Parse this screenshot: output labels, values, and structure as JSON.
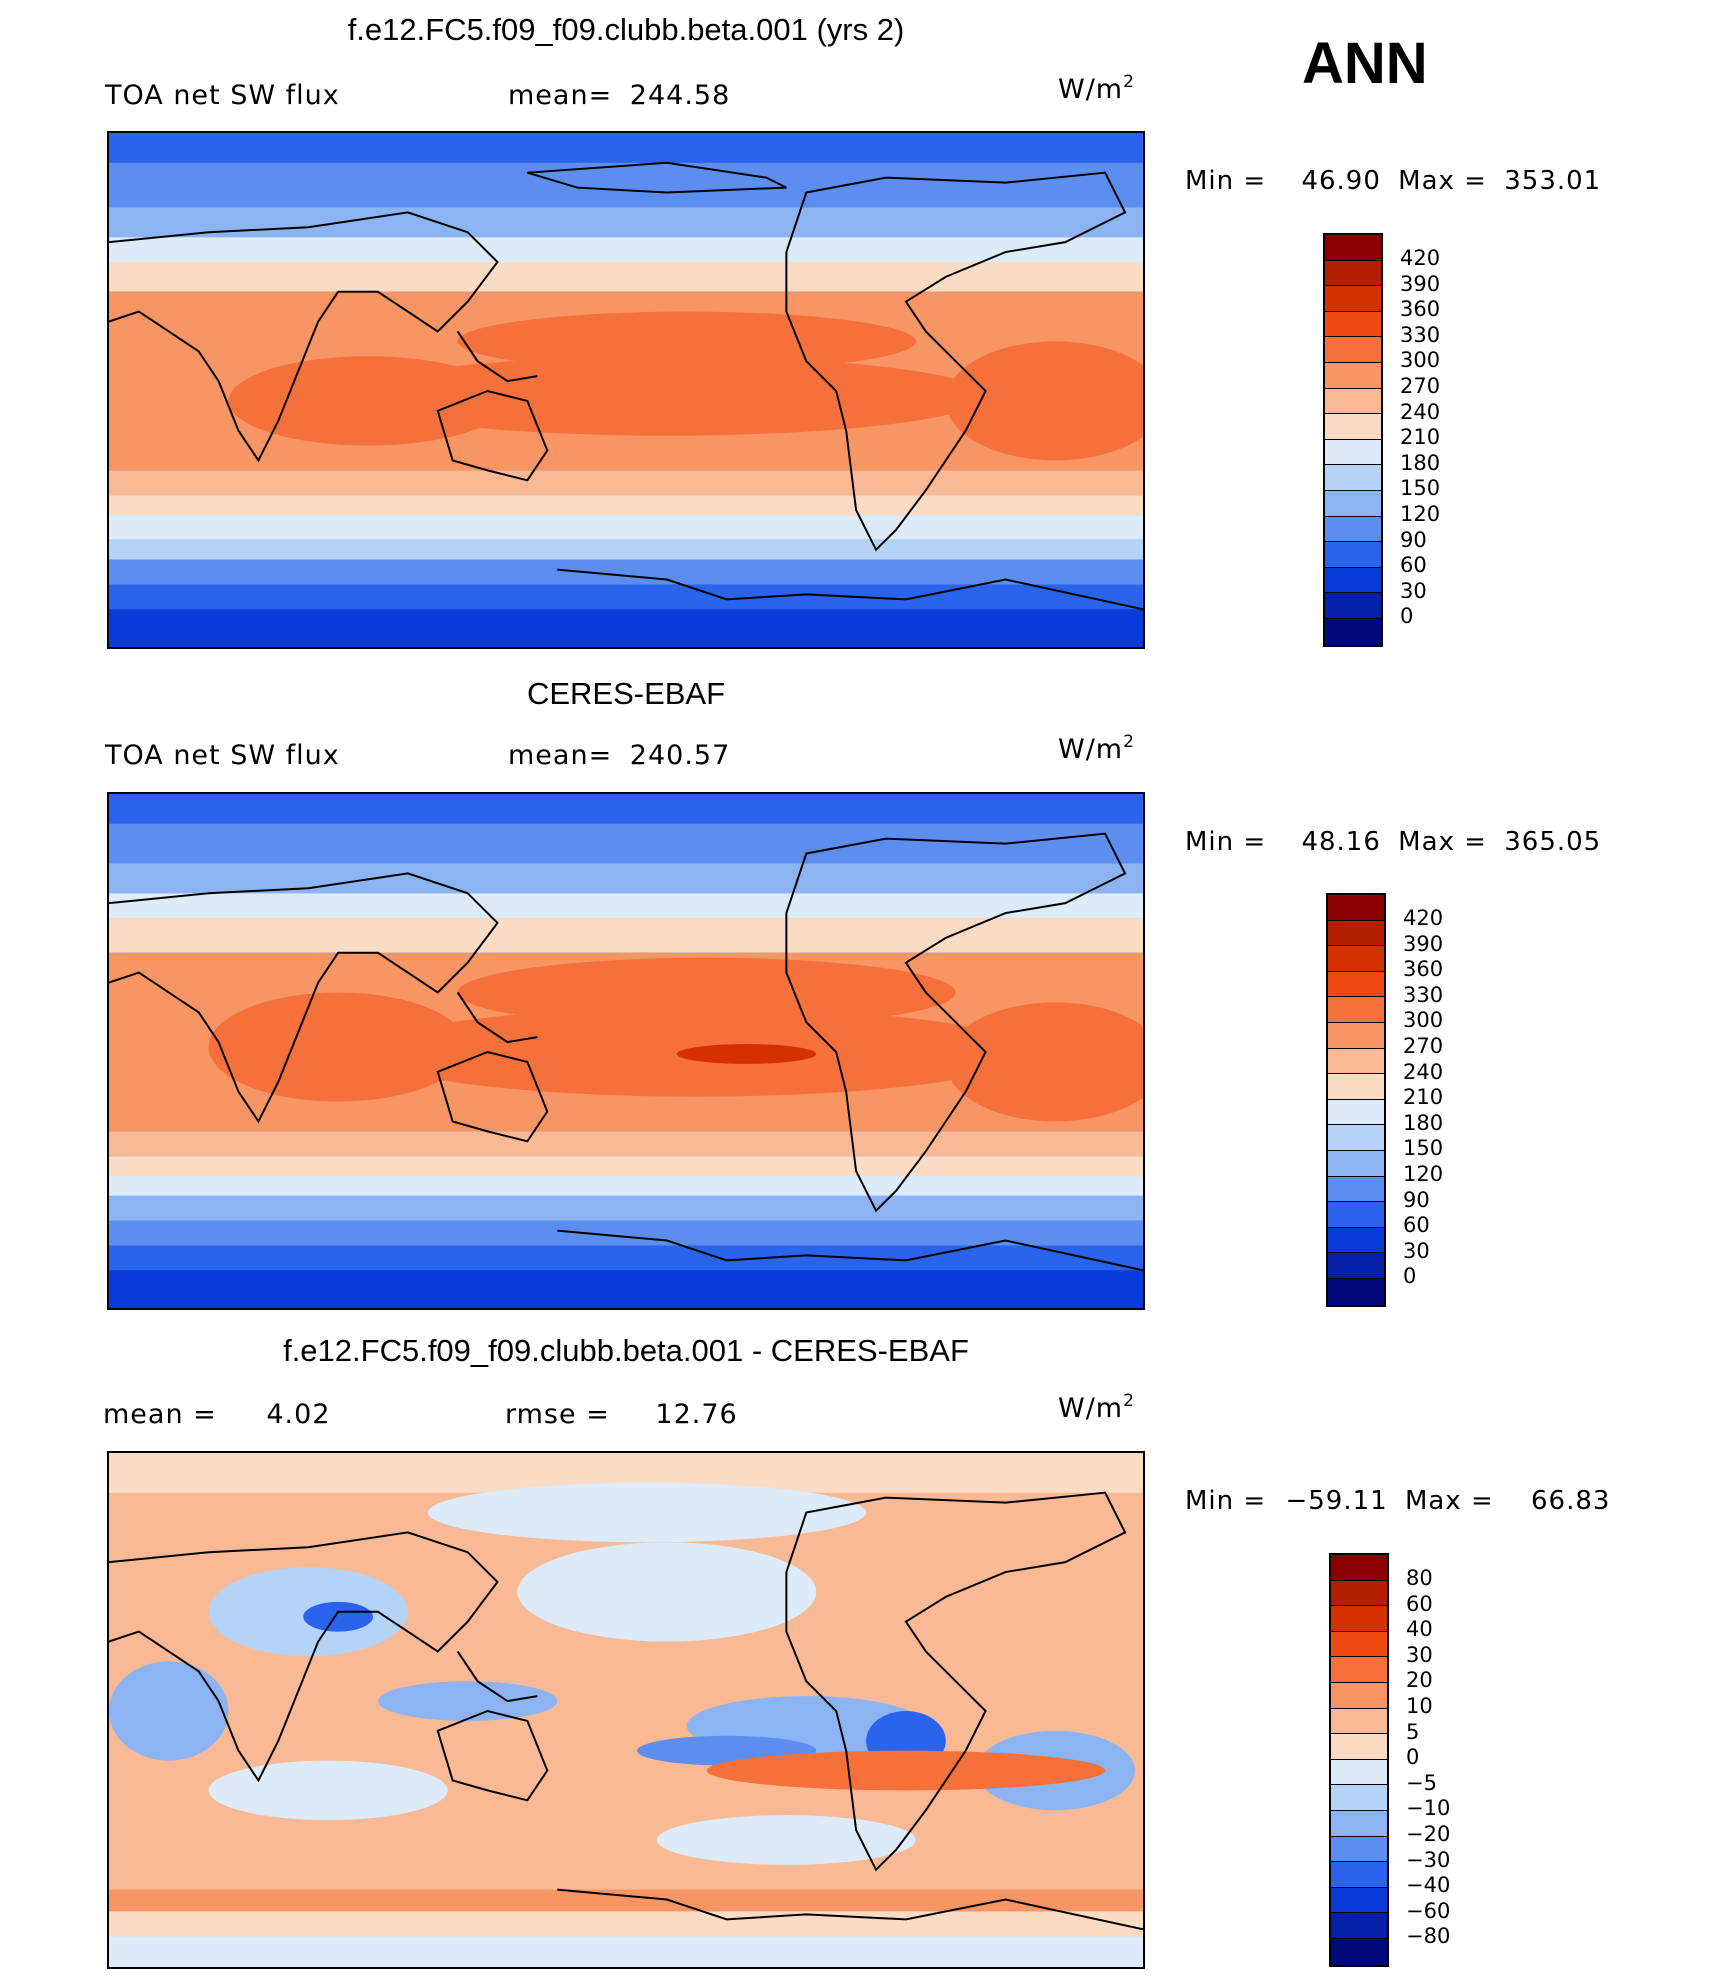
{
  "season_label": "ANN",
  "panels": [
    {
      "title": "f.e12.FC5.f09_f09.clubb.beta.001 (yrs 2)",
      "left_label": "TOA net SW flux",
      "mid_label": "mean=",
      "mid_value": "244.58",
      "units_base": "W/m",
      "units_exp": "2",
      "min_label": "Min  =",
      "min_value": "46.90",
      "max_label": "Max  =",
      "max_value": "353.01",
      "colorbar": {
        "labels": [
          "420",
          "390",
          "360",
          "330",
          "300",
          "270",
          "240",
          "210",
          "180",
          "150",
          "120",
          "90",
          "60",
          "30",
          "0"
        ],
        "colors": [
          "#8B0000",
          "#B22000",
          "#D53000",
          "#EE4A12",
          "#F5703A",
          "#F79565",
          "#F9B995",
          "#FADCC4",
          "#DCEBF7",
          "#B5D3F7",
          "#8CB4F3",
          "#5C8EEF",
          "#2A64EC",
          "#0A3BD8",
          "#0520A8",
          "#00087A"
        ]
      }
    },
    {
      "title": "CERES-EBAF",
      "left_label": "TOA net SW flux",
      "mid_label": "mean=",
      "mid_value": "240.57",
      "units_base": "W/m",
      "units_exp": "2",
      "min_label": "Min  =",
      "min_value": "48.16",
      "max_label": "Max  =",
      "max_value": "365.05",
      "colorbar": {
        "labels": [
          "420",
          "390",
          "360",
          "330",
          "300",
          "270",
          "240",
          "210",
          "180",
          "150",
          "120",
          "90",
          "60",
          "30",
          "0"
        ],
        "colors": [
          "#8B0000",
          "#B22000",
          "#D53000",
          "#EE4A12",
          "#F5703A",
          "#F79565",
          "#F9B995",
          "#FADCC4",
          "#DCEBF7",
          "#B5D3F7",
          "#8CB4F3",
          "#5C8EEF",
          "#2A64EC",
          "#0A3BD8",
          "#0520A8",
          "#00087A"
        ]
      }
    },
    {
      "title": "f.e12.FC5.f09_f09.clubb.beta.001 - CERES-EBAF",
      "left_label": "mean  =",
      "left_value": "4.02",
      "mid_label": "rmse  =",
      "mid_value": "12.76",
      "units_base": "W/m",
      "units_exp": "2",
      "min_label": "Min  =",
      "min_value": "−59.11",
      "max_label": "Max  =",
      "max_value": "66.83",
      "colorbar": {
        "labels": [
          "80",
          "60",
          "40",
          "30",
          "20",
          "10",
          "5",
          "0",
          "−5",
          "−10",
          "−20",
          "−30",
          "−40",
          "−60",
          "−80"
        ],
        "colors": [
          "#8B0000",
          "#B22000",
          "#D53000",
          "#EE4A12",
          "#F5703A",
          "#F79565",
          "#F9B995",
          "#FADCC4",
          "#DCEBF7",
          "#B5D3F7",
          "#8CB4F3",
          "#5C8EEF",
          "#2A64EC",
          "#0A3BD8",
          "#0520A8",
          "#00087A"
        ]
      }
    }
  ]
}
